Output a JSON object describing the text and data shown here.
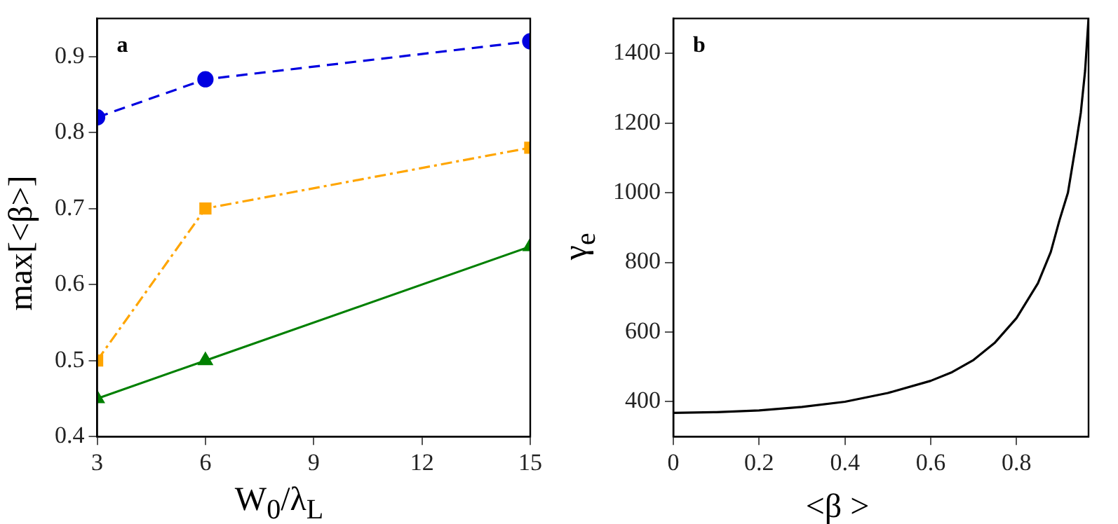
{
  "chart_data": [
    {
      "type": "line",
      "xlabel": "W$_{0}$/λ$_{L}$",
      "ylabel": "max[<β>]",
      "annotations": [
        "a"
      ],
      "x": [
        3,
        6,
        15
      ],
      "xlim": [
        3,
        15
      ],
      "xticks": [
        3,
        6,
        9,
        12,
        15
      ],
      "ylim": [
        0.4,
        0.95
      ],
      "yticks": [
        0.4,
        0.5,
        0.6,
        0.7,
        0.8,
        0.9
      ],
      "grid": false,
      "legend": false,
      "series": [
        {
          "color": "#0000e0",
          "values": [
            0.82,
            0.87,
            0.92
          ],
          "marker": "circle",
          "line_style": "dashed"
        },
        {
          "color": "#ffa500",
          "values": [
            0.5,
            0.7,
            0.78
          ],
          "marker": "square",
          "line_style": "dashdot"
        },
        {
          "color": "#008000",
          "values": [
            0.45,
            0.5,
            0.65
          ],
          "marker": "triangle",
          "line_style": "solid"
        }
      ]
    },
    {
      "type": "line",
      "xlabel": "<β >",
      "ylabel": "γ$_{e}$",
      "annotations": [
        "b"
      ],
      "x": [
        0,
        0.1,
        0.2,
        0.3,
        0.4,
        0.5,
        0.6,
        0.65,
        0.7,
        0.75,
        0.8,
        0.85,
        0.88,
        0.9,
        0.92,
        0.94,
        0.95,
        0.96,
        0.968
      ],
      "xlim": [
        0,
        0.968
      ],
      "xticks": [
        0,
        0.2,
        0.4,
        0.6,
        0.8
      ],
      "ylim": [
        300,
        1500
      ],
      "yticks": [
        400,
        600,
        800,
        1000,
        1200,
        1400
      ],
      "grid": false,
      "legend": false,
      "marker": "none",
      "line_style": "solid",
      "series": [
        {
          "color": "#000000",
          "values": [
            368,
            370,
            375,
            385,
            400,
            425,
            460,
            485,
            520,
            570,
            640,
            740,
            830,
            920,
            1000,
            1150,
            1230,
            1350,
            1500
          ]
        }
      ]
    }
  ]
}
